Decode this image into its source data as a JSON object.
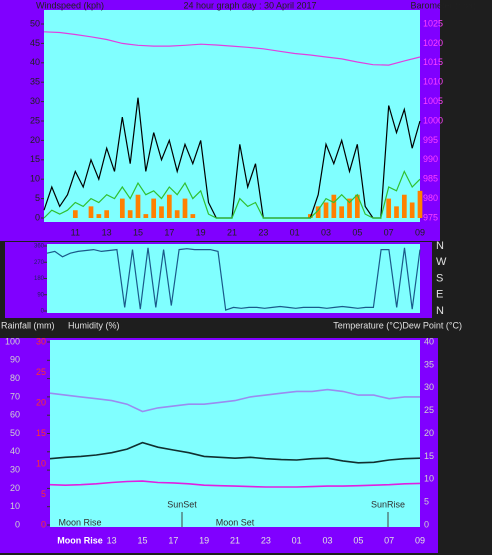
{
  "chart_data": [
    {
      "type": "line",
      "title": "24 hour graph day : 30 April 2017",
      "ylabel": "Windspeed (kph)",
      "y2label": "Barometer (hpa)",
      "xtick_labels": [
        "11",
        "13",
        "15",
        "17",
        "19",
        "21",
        "23",
        "01",
        "03",
        "05",
        "07",
        "09"
      ],
      "ylim": [
        0,
        50
      ],
      "yticks": [
        0,
        5,
        10,
        15,
        20,
        25,
        30,
        35,
        40,
        45,
        50
      ],
      "y2lim": [
        975,
        1025
      ],
      "y2ticks": [
        975,
        980,
        985,
        990,
        995,
        1000,
        1005,
        1010,
        1015,
        1020,
        1025
      ],
      "series": [
        {
          "type": "bar",
          "color": "#ff8000",
          "values": [
            0,
            0,
            0,
            0,
            2,
            0,
            3,
            1,
            2,
            0,
            5,
            2,
            6,
            1,
            5,
            3,
            6,
            2,
            5,
            1,
            0,
            0,
            0,
            0,
            0,
            0,
            0,
            0,
            0,
            0,
            0,
            0,
            0,
            0,
            1,
            3,
            4,
            6,
            3,
            5,
            6,
            0,
            0,
            0,
            5,
            3,
            6,
            4,
            7
          ]
        },
        {
          "color": "#000000",
          "values": [
            2,
            8,
            3,
            6,
            12,
            8,
            15,
            10,
            18,
            12,
            26,
            14,
            31,
            12,
            22,
            15,
            20,
            12,
            19,
            14,
            20,
            4,
            0,
            0,
            0,
            19,
            8,
            14,
            0,
            0,
            0,
            0,
            0,
            0,
            0,
            6,
            19,
            14,
            20,
            12,
            19,
            3,
            0,
            0,
            29,
            22,
            28,
            18,
            25
          ]
        },
        {
          "color": "#30c030",
          "values": [
            0,
            2,
            1,
            2,
            4,
            3,
            5,
            4,
            6,
            5,
            8,
            5,
            9,
            6,
            7,
            5,
            8,
            6,
            9,
            5,
            7,
            1,
            0,
            0,
            0,
            5,
            3,
            4,
            0,
            0,
            0,
            0,
            0,
            0,
            0,
            2,
            5,
            4,
            6,
            4,
            6,
            1,
            0,
            0,
            8,
            7,
            12,
            8,
            10
          ]
        },
        {
          "color": "#e040e0",
          "axis": "y2",
          "values": [
            1023,
            1022.8,
            1022.3,
            1021.7,
            1021,
            1020,
            1019.5,
            1019.3,
            1019.3,
            1019.5,
            1019.8,
            1019.6,
            1019.3,
            1019,
            1018.6,
            1018,
            1017.4,
            1017,
            1016.5,
            1016,
            1015.2,
            1014.5,
            1014.4,
            1015.5,
            1016.5
          ]
        }
      ]
    },
    {
      "type": "line",
      "ylim": [
        0,
        360
      ],
      "yticks": [
        0,
        90,
        180,
        270,
        360
      ],
      "y2lim": [
        0,
        360
      ],
      "y2ticks": [
        {
          "value": 0,
          "label": "N"
        },
        {
          "value": 90,
          "label": "E"
        },
        {
          "value": 180,
          "label": "S"
        },
        {
          "value": 270,
          "label": "W"
        },
        {
          "value": 360,
          "label": "N"
        }
      ],
      "series": [
        {
          "color": "#1a5a8a",
          "values": [
            320,
            330,
            300,
            320,
            330,
            335,
            340,
            330,
            335,
            340,
            20,
            340,
            10,
            350,
            20,
            340,
            30,
            340,
            345,
            340,
            340,
            340,
            330,
            5,
            20,
            15,
            20,
            20,
            15,
            20,
            25,
            20,
            15,
            20,
            20,
            20,
            15,
            20,
            25,
            20,
            15,
            20,
            20,
            340,
            340,
            20,
            350,
            10,
            340
          ]
        }
      ]
    },
    {
      "type": "line",
      "ylabel": "Humidity (%)",
      "y3label": "Rainfall (mm)",
      "y2label": "Temperature (°C)Dew Point (°C)",
      "xtick_labels": [
        "13",
        "15",
        "17",
        "19",
        "21",
        "23",
        "01",
        "03",
        "05",
        "07",
        "09"
      ],
      "ylim": [
        0,
        100
      ],
      "yticks": [
        0,
        10,
        20,
        30,
        40,
        50,
        60,
        70,
        80,
        90,
        100
      ],
      "y3lim": [
        0,
        30
      ],
      "y3ticks": [
        0,
        5,
        10,
        15,
        20,
        25,
        30
      ],
      "y2lim": [
        0,
        40
      ],
      "y2ticks": [
        0,
        5,
        10,
        15,
        20,
        25,
        30,
        35,
        40
      ],
      "annotations": [
        "SunSet",
        "SunRise",
        "Moon Rise",
        "Moon Set",
        "Moon Rise"
      ],
      "series": [
        {
          "color": "#9a8cf0",
          "values": [
            72,
            71,
            70,
            69,
            68,
            66,
            62,
            64,
            65,
            66,
            66,
            67,
            68,
            70,
            71,
            72,
            73,
            73,
            74,
            73,
            71,
            71,
            69,
            70,
            70
          ]
        },
        {
          "color": "#103030",
          "axis": "y2",
          "values": [
            14.5,
            14.8,
            15,
            15.3,
            15.8,
            16.6,
            18,
            17,
            16.4,
            15.8,
            15,
            14.8,
            14.6,
            14.8,
            14.5,
            14.3,
            14.2,
            14.5,
            14.6,
            14,
            13.6,
            13.7,
            14.2,
            14.5,
            14.6
          ]
        },
        {
          "color": "#e020e0",
          "axis": "y2",
          "values": [
            8.8,
            8.7,
            8.8,
            9,
            9.3,
            9.5,
            9.6,
            9.3,
            9.2,
            9,
            8.7,
            8.6,
            8.5,
            8.4,
            8.3,
            8.3,
            8.3,
            8.4,
            8.5,
            8.5,
            8.6,
            8.7,
            8.8,
            9,
            9.1
          ]
        }
      ]
    }
  ]
}
